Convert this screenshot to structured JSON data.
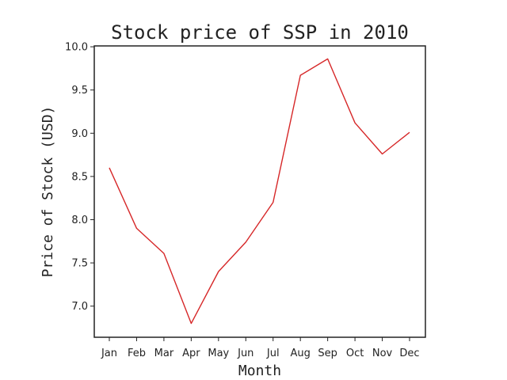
{
  "chart_data": {
    "type": "line",
    "title": "Stock price of SSP in 2010",
    "xlabel": "Month",
    "ylabel": "Price of Stock (USD)",
    "categories": [
      "Jan",
      "Feb",
      "Mar",
      "Apr",
      "May",
      "Jun",
      "Jul",
      "Aug",
      "Sep",
      "Oct",
      "Nov",
      "Dec"
    ],
    "yticks": [
      "7.0",
      "7.5",
      "8.0",
      "8.5",
      "9.0",
      "9.5",
      "10.0"
    ],
    "ylim": [
      6.64,
      10.01
    ],
    "grid": false,
    "legend": "none",
    "series": [
      {
        "values": [
          8.6,
          7.9,
          7.61,
          6.8,
          7.4,
          7.74,
          8.2,
          9.67,
          9.86,
          9.12,
          8.76,
          9.01
        ],
        "color": "#d62728"
      }
    ]
  }
}
